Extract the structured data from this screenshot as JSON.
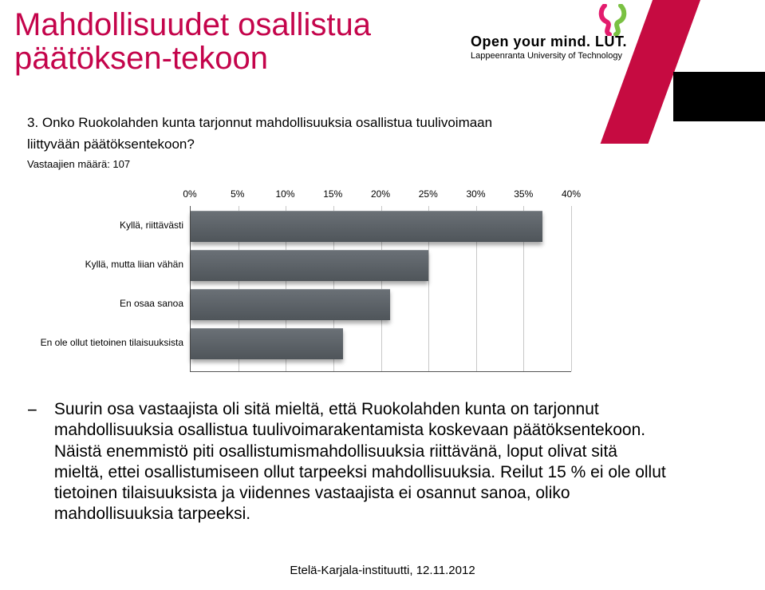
{
  "title": "Mahdollisuudet osallistua päätöksen-tekoon",
  "logo": {
    "tagline": "Open your mind. LUT.",
    "subline": "Lappeenranta University of Technology",
    "knot_color1": "#e31b6d",
    "knot_color2": "#7ac142"
  },
  "question": {
    "number": "3.",
    "text": "Onko Ruokolahden kunta tarjonnut mahdollisuuksia osallistua tuulivoimaan liittyvään päätöksentekoon?"
  },
  "respondents": "Vastaajien määrä: 107",
  "chart": {
    "type": "bar",
    "x_axis": {
      "min": 0,
      "max": 40,
      "step": 5,
      "suffix": "%",
      "ticks": [
        0,
        5,
        10,
        15,
        20,
        25,
        30,
        35,
        40
      ]
    },
    "categories": [
      {
        "label": "Kyllä, riittävästi",
        "value": 37
      },
      {
        "label": "Kyllä, mutta liian vähän",
        "value": 25
      },
      {
        "label": "En osaa sanoa",
        "value": 21
      },
      {
        "label": "En ole ollut tietoinen tilaisuuksista",
        "value": 16
      }
    ],
    "bar_color_top": "#6a7076",
    "bar_color_bottom": "#4f555a",
    "grid_color": "#c8c8c8",
    "axis_color": "#555555",
    "label_fontsize": 12,
    "background": "#ffffff"
  },
  "bullet": {
    "marker": "−",
    "text": "Suurin osa vastaajista oli sitä mieltä, että Ruokolahden kunta on tarjonnut mahdollisuuksia osallistua tuulivoimarakentamista koskevaan päätöksentekoon. Näistä enemmistö piti osallistumismahdollisuuksia riittävänä, loput olivat sitä mieltä, ettei osallistumiseen ollut tarpeeksi mahdollisuuksia. Reilut 15 % ei ole ollut tietoinen tilaisuuksista ja viidennes vastaajista ei osannut sanoa, oliko mahdollisuuksia tarpeeksi."
  },
  "footer": "Etelä-Karjala-instituutti, 12.11.2012"
}
